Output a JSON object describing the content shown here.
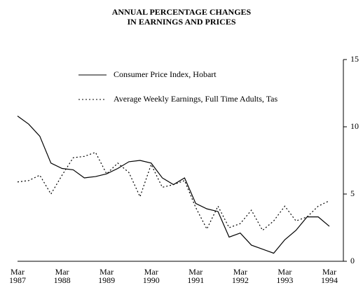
{
  "chart_data": {
    "type": "line",
    "title": [
      "ANNUAL PERCENTAGE CHANGES",
      "IN EARNINGS AND PRICES"
    ],
    "categories": [
      "Mar 1987",
      null,
      null,
      null,
      "Mar 1988",
      null,
      null,
      null,
      "Mar 1989",
      null,
      null,
      null,
      "Mar 1990",
      null,
      null,
      null,
      "Mar 1991",
      null,
      null,
      null,
      "Mar 1992",
      null,
      null,
      null,
      "Mar 1993",
      null,
      null,
      null,
      "Mar 1994"
    ],
    "series": [
      {
        "name": "Consumer Price Index, Hobart",
        "color": "#000000",
        "dash": "solid",
        "values": [
          10.8,
          10.2,
          9.3,
          7.3,
          6.9,
          6.8,
          6.2,
          6.3,
          6.5,
          6.9,
          7.4,
          7.5,
          7.3,
          6.2,
          5.7,
          6.2,
          4.3,
          3.9,
          3.7,
          1.8,
          2.1,
          1.2,
          0.9,
          0.6,
          1.6,
          2.3,
          3.3,
          3.3,
          2.6
        ]
      },
      {
        "name": "Average Weekly Earnings, Full Time Adults, Tas",
        "color": "#000000",
        "dash": "dotted",
        "values": [
          5.9,
          6.0,
          6.4,
          5.0,
          6.4,
          7.7,
          7.8,
          8.1,
          6.5,
          7.3,
          6.6,
          4.8,
          7.2,
          5.5,
          5.7,
          6.0,
          4.0,
          2.4,
          4.1,
          2.5,
          2.8,
          3.8,
          2.3,
          3.0,
          4.1,
          3.0,
          3.3,
          4.1,
          4.5
        ]
      }
    ],
    "ylim": [
      0,
      15
    ],
    "yticks": [
      0,
      5,
      10,
      15
    ],
    "y_axis_side": "right",
    "grid": false
  }
}
